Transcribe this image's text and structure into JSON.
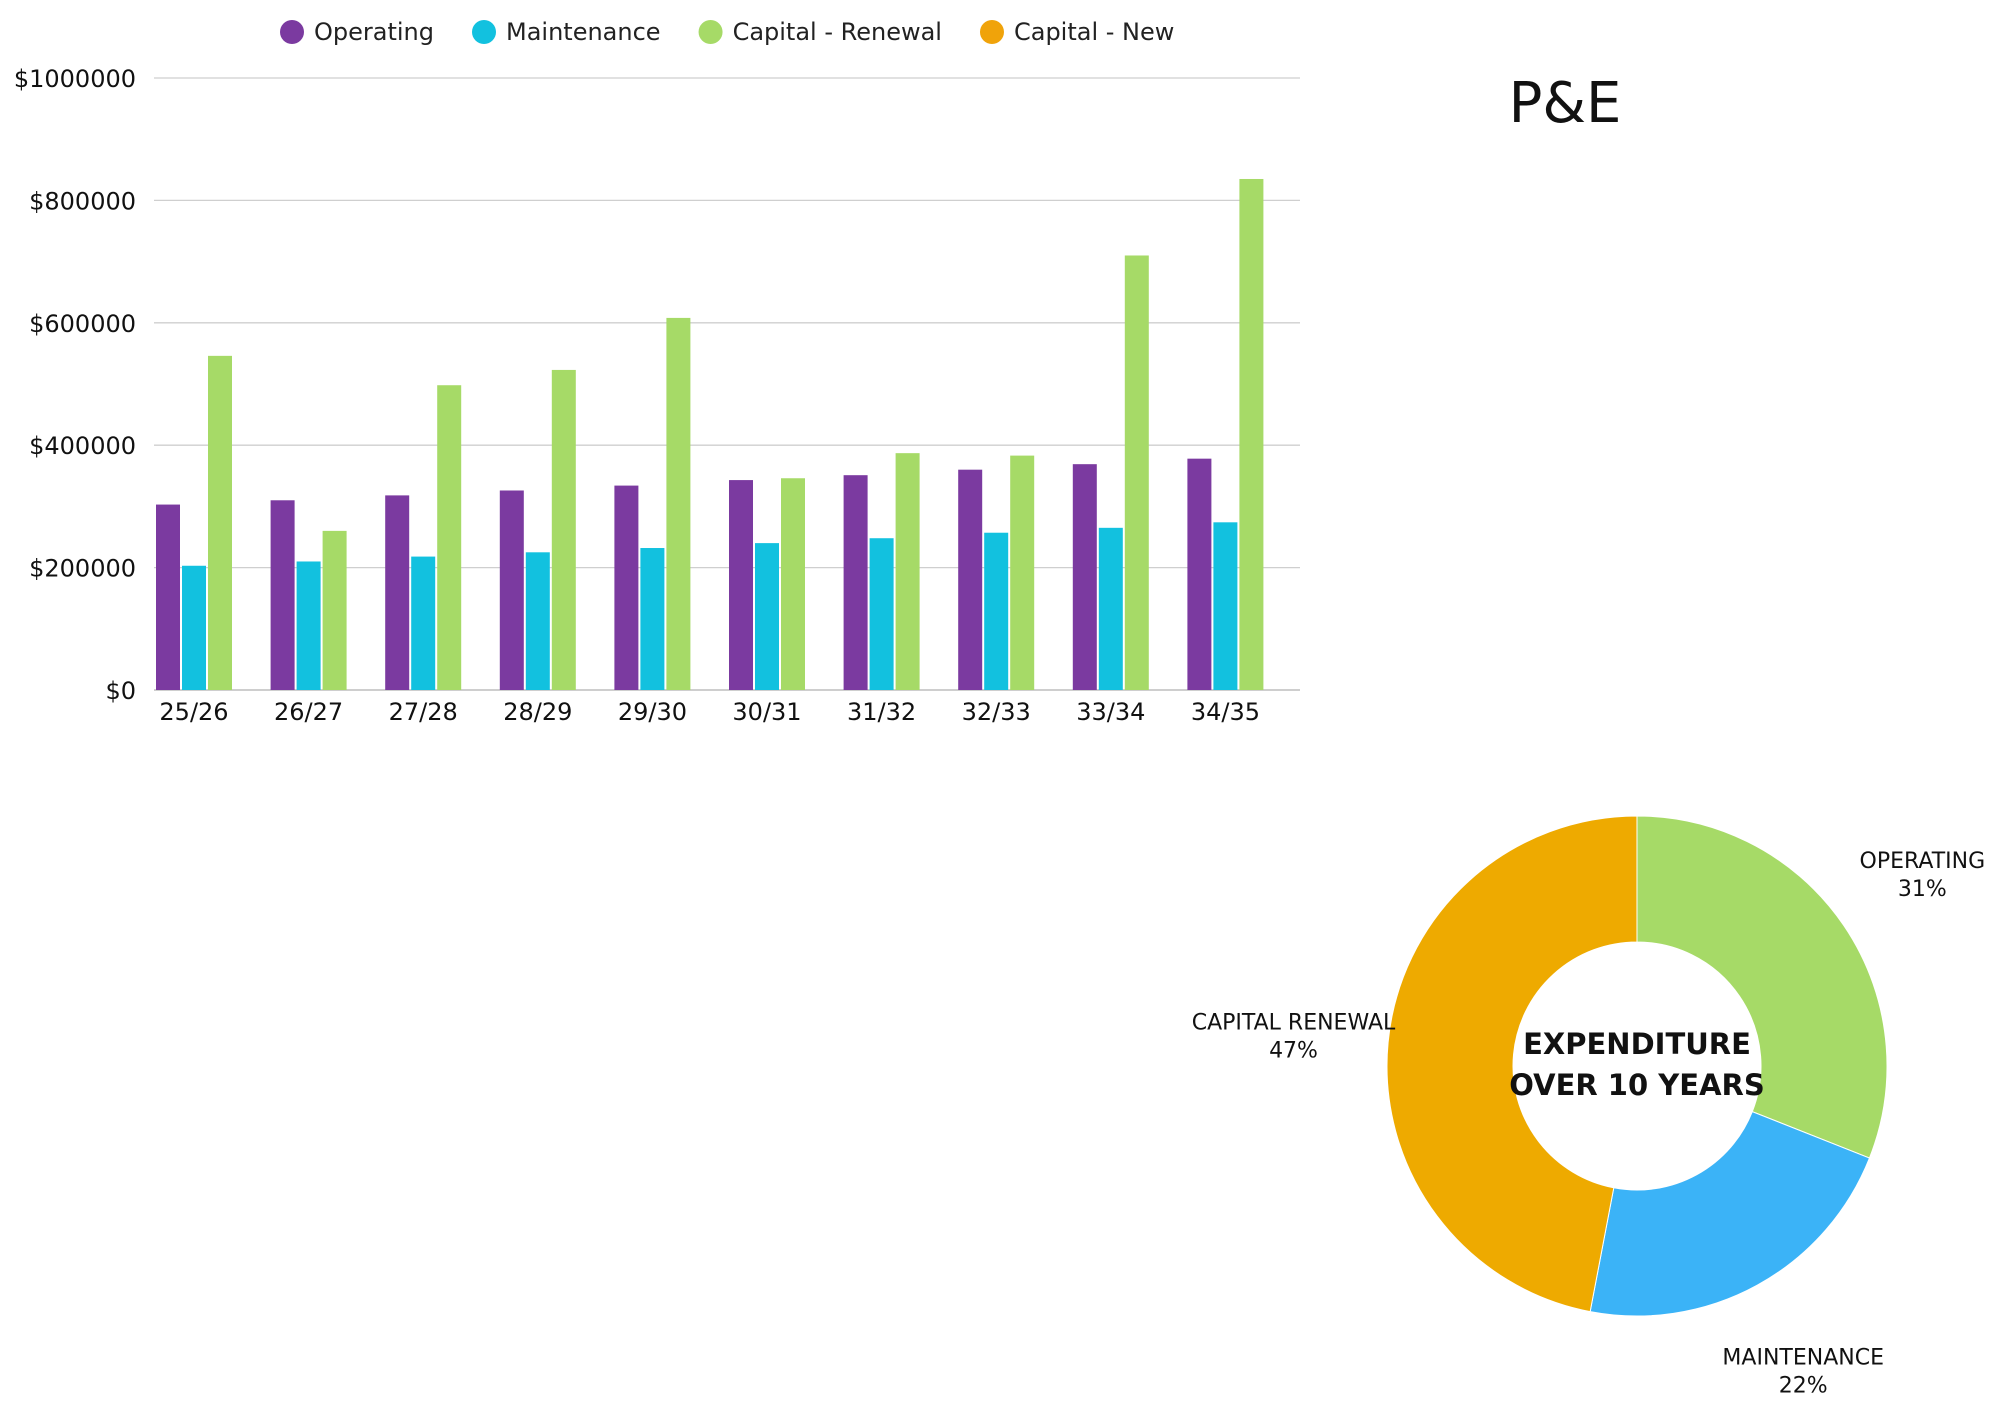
{
  "page": {
    "title": "P&E"
  },
  "chart_data": [
    {
      "type": "bar",
      "categories": [
        "25/26",
        "26/27",
        "27/28",
        "28/29",
        "29/30",
        "30/31",
        "31/32",
        "32/33",
        "33/34",
        "34/35"
      ],
      "series": [
        {
          "name": "Operating",
          "color": "#7b3aa0",
          "values": [
            303000,
            310000,
            318000,
            326000,
            334000,
            343000,
            351000,
            360000,
            369000,
            378000
          ]
        },
        {
          "name": "Maintenance",
          "color": "#12c1df",
          "values": [
            203000,
            210000,
            218000,
            225000,
            232000,
            240000,
            248000,
            257000,
            265000,
            274000
          ]
        },
        {
          "name": "Capital - Renewal",
          "color": "#a6da67",
          "values": [
            546000,
            260000,
            498000,
            523000,
            608000,
            346000,
            387000,
            383000,
            710000,
            835000
          ]
        },
        {
          "name": "Capital - New",
          "color": "#f0a30a",
          "values": [
            0,
            0,
            0,
            0,
            0,
            0,
            0,
            0,
            0,
            0
          ]
        }
      ],
      "yticks": [
        "$0",
        "$200000",
        "$400000",
        "$600000",
        "$800000",
        "$1000000"
      ],
      "ylim": [
        0,
        1000000
      ],
      "grid": true,
      "legend_position": "top"
    },
    {
      "type": "pie",
      "style": "donut",
      "center_text": [
        "EXPENDITURE",
        "OVER 10 YEARS"
      ],
      "slices": [
        {
          "label": "OPERATING",
          "value": 31,
          "value_label": "31%",
          "color": "#a6da67"
        },
        {
          "label": "MAINTENANCE",
          "value": 22,
          "value_label": "22%",
          "color": "#3bb3f7"
        },
        {
          "label": "CAPITAL RENEWAL",
          "value": 47,
          "value_label": "47%",
          "color": "#eeaa00"
        }
      ]
    }
  ]
}
